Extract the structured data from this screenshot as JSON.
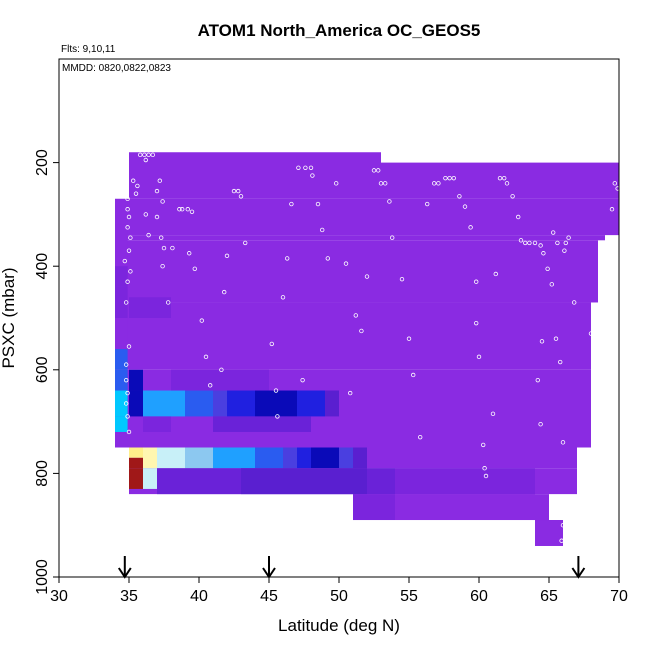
{
  "chart_data": {
    "type": "heatmap",
    "title": "ATOM1 North_America OC_GEOS5",
    "annotations": [
      "Flts: 9,10,11",
      "MMDD: 0820,0822,0823"
    ],
    "xlabel": "Latitude (deg N)",
    "ylabel": "PSXC (mbar)",
    "xlim": [
      30,
      70
    ],
    "ylim": [
      1000,
      0
    ],
    "x_ticks": [
      "30",
      "35",
      "40",
      "45",
      "50",
      "55",
      "60",
      "65",
      "70"
    ],
    "y_ticks": [
      "200",
      "400",
      "600",
      "800",
      "1000"
    ],
    "grid": false,
    "arrows_at_latitude": [
      34.7,
      45.0,
      67.1
    ],
    "colors": {
      "background": "#8a2be2",
      "violet": "#8a2be2",
      "violet_mid": "#7b25dd",
      "violet_dark": "#6a22d8",
      "indigo": "#5a1fd0",
      "blue_violet": "#4a3fe0",
      "blue": "#2020e0",
      "navy": "#0a0ab8",
      "royal": "#2a5cf0",
      "sky": "#1fa0ff",
      "cyan": "#00c8ff",
      "light_blue": "#8cc8f0",
      "pale_cyan": "#c8f0f8",
      "pale_yellow": "#fff7b0",
      "yellow": "#fff08a",
      "dark_red": "#a01818",
      "marker": "#ffffff",
      "arrow": "#000000"
    },
    "cells": [
      [
        34.0,
        34.9,
        270,
        320,
        "violet"
      ],
      [
        34.0,
        34.9,
        320,
        400,
        "violet"
      ],
      [
        34.0,
        34.9,
        400,
        440,
        "violet_mid"
      ],
      [
        34.0,
        34.9,
        440,
        500,
        "violet_mid"
      ],
      [
        34.0,
        34.9,
        500,
        560,
        "violet"
      ],
      [
        34.0,
        34.9,
        560,
        600,
        "royal"
      ],
      [
        34.0,
        34.9,
        600,
        640,
        "royal"
      ],
      [
        34.0,
        34.9,
        640,
        690,
        "cyan"
      ],
      [
        34.0,
        34.9,
        690,
        720,
        "cyan"
      ],
      [
        35.0,
        36.0,
        600,
        640,
        "navy"
      ],
      [
        35.0,
        36.0,
        640,
        690,
        "navy"
      ],
      [
        35.0,
        36.0,
        750,
        770,
        "yellow"
      ],
      [
        35.0,
        36.0,
        770,
        790,
        "dark_red"
      ],
      [
        35.0,
        36.0,
        790,
        830,
        "dark_red"
      ],
      [
        36.0,
        37.0,
        640,
        690,
        "sky"
      ],
      [
        36.0,
        37.0,
        750,
        790,
        "pale_yellow"
      ],
      [
        36.0,
        37.0,
        790,
        830,
        "pale_cyan"
      ],
      [
        37.0,
        38.0,
        640,
        690,
        "sky"
      ],
      [
        37.0,
        38.0,
        750,
        790,
        "pale_cyan"
      ],
      [
        38.0,
        39.0,
        640,
        690,
        "sky"
      ],
      [
        38.0,
        39.0,
        750,
        790,
        "pale_cyan"
      ],
      [
        39.0,
        40.0,
        640,
        690,
        "royal"
      ],
      [
        39.0,
        40.0,
        750,
        790,
        "light_blue"
      ],
      [
        40.0,
        41.0,
        640,
        690,
        "royal"
      ],
      [
        40.0,
        41.0,
        750,
        790,
        "light_blue"
      ],
      [
        41.0,
        42.0,
        640,
        690,
        "blue_violet"
      ],
      [
        41.0,
        42.0,
        750,
        790,
        "sky"
      ],
      [
        42.0,
        43.0,
        640,
        690,
        "blue"
      ],
      [
        42.0,
        43.0,
        750,
        790,
        "sky"
      ],
      [
        43.0,
        44.0,
        640,
        690,
        "blue"
      ],
      [
        43.0,
        44.0,
        750,
        790,
        "sky"
      ],
      [
        44.0,
        45.0,
        640,
        690,
        "navy"
      ],
      [
        44.0,
        45.0,
        750,
        790,
        "royal"
      ],
      [
        45.0,
        46.0,
        640,
        690,
        "navy"
      ],
      [
        45.0,
        46.0,
        750,
        790,
        "royal"
      ],
      [
        46.0,
        47.0,
        640,
        690,
        "navy"
      ],
      [
        46.0,
        47.0,
        750,
        790,
        "blue_violet"
      ],
      [
        47.0,
        48.0,
        640,
        690,
        "blue"
      ],
      [
        47.0,
        48.0,
        750,
        790,
        "blue"
      ],
      [
        48.0,
        49.0,
        640,
        690,
        "blue"
      ],
      [
        48.0,
        49.0,
        750,
        790,
        "navy"
      ],
      [
        49.0,
        50.0,
        640,
        690,
        "indigo"
      ],
      [
        49.0,
        50.0,
        750,
        790,
        "navy"
      ],
      [
        50.0,
        51.0,
        750,
        790,
        "blue_violet"
      ],
      [
        51.0,
        52.0,
        750,
        790,
        "indigo"
      ],
      [
        35.0,
        38.0,
        460,
        500,
        "violet_mid"
      ],
      [
        38.0,
        45.0,
        600,
        640,
        "violet_mid"
      ],
      [
        36.0,
        38.0,
        690,
        720,
        "violet_mid"
      ],
      [
        41.0,
        48.0,
        690,
        720,
        "violet_dark"
      ],
      [
        37.0,
        54.0,
        790,
        840,
        "violet_dark"
      ],
      [
        43.0,
        52.0,
        790,
        840,
        "indigo"
      ],
      [
        54.0,
        58.0,
        790,
        840,
        "violet_mid"
      ],
      [
        58.0,
        64.0,
        790,
        840,
        "violet_mid"
      ],
      [
        51.0,
        54.0,
        840,
        890,
        "violet_mid"
      ],
      [
        54.0,
        64.0,
        840,
        890,
        "violet"
      ],
      [
        64.0,
        66.0,
        890,
        940,
        "violet"
      ]
    ],
    "markers": [
      [
        35.8,
        185
      ],
      [
        36.1,
        185
      ],
      [
        36.4,
        185
      ],
      [
        36.7,
        185
      ],
      [
        36.2,
        195
      ],
      [
        35.3,
        235
      ],
      [
        35.6,
        245
      ],
      [
        35.5,
        260
      ],
      [
        34.9,
        270
      ],
      [
        34.9,
        290
      ],
      [
        35.0,
        305
      ],
      [
        34.9,
        325
      ],
      [
        35.1,
        345
      ],
      [
        35.0,
        370
      ],
      [
        34.7,
        390
      ],
      [
        35.1,
        410
      ],
      [
        34.9,
        430
      ],
      [
        34.8,
        470
      ],
      [
        35.0,
        555
      ],
      [
        34.8,
        590
      ],
      [
        34.8,
        620
      ],
      [
        34.9,
        645
      ],
      [
        34.8,
        665
      ],
      [
        34.9,
        690
      ],
      [
        35.0,
        720
      ],
      [
        36.2,
        300
      ],
      [
        36.4,
        340
      ],
      [
        37.2,
        235
      ],
      [
        37.0,
        255
      ],
      [
        37.4,
        275
      ],
      [
        37.0,
        305
      ],
      [
        37.3,
        345
      ],
      [
        37.5,
        365
      ],
      [
        37.4,
        400
      ],
      [
        37.8,
        470
      ],
      [
        38.6,
        290
      ],
      [
        38.8,
        290
      ],
      [
        39.2,
        290
      ],
      [
        39.5,
        295
      ],
      [
        38.1,
        365
      ],
      [
        39.3,
        375
      ],
      [
        39.7,
        405
      ],
      [
        40.2,
        505
      ],
      [
        40.5,
        575
      ],
      [
        40.8,
        630
      ],
      [
        41.6,
        600
      ],
      [
        41.8,
        450
      ],
      [
        42.0,
        380
      ],
      [
        42.5,
        255
      ],
      [
        42.8,
        255
      ],
      [
        43.0,
        265
      ],
      [
        43.3,
        355
      ],
      [
        45.2,
        550
      ],
      [
        45.5,
        640
      ],
      [
        45.6,
        690
      ],
      [
        46.0,
        460
      ],
      [
        46.3,
        385
      ],
      [
        46.6,
        280
      ],
      [
        47.1,
        210
      ],
      [
        47.6,
        210
      ],
      [
        48.0,
        210
      ],
      [
        47.4,
        620
      ],
      [
        48.1,
        225
      ],
      [
        48.5,
        280
      ],
      [
        48.8,
        330
      ],
      [
        49.2,
        385
      ],
      [
        49.8,
        240
      ],
      [
        50.5,
        395
      ],
      [
        50.8,
        645
      ],
      [
        51.2,
        495
      ],
      [
        51.6,
        525
      ],
      [
        52.0,
        420
      ],
      [
        52.5,
        215
      ],
      [
        52.8,
        215
      ],
      [
        53.0,
        240
      ],
      [
        53.3,
        240
      ],
      [
        53.6,
        275
      ],
      [
        53.8,
        345
      ],
      [
        54.5,
        425
      ],
      [
        55.0,
        540
      ],
      [
        55.3,
        610
      ],
      [
        55.8,
        730
      ],
      [
        56.3,
        280
      ],
      [
        56.8,
        240
      ],
      [
        57.1,
        240
      ],
      [
        57.6,
        230
      ],
      [
        57.9,
        230
      ],
      [
        58.2,
        230
      ],
      [
        58.6,
        265
      ],
      [
        59.0,
        285
      ],
      [
        59.4,
        325
      ],
      [
        59.8,
        430
      ],
      [
        59.8,
        510
      ],
      [
        60.0,
        575
      ],
      [
        60.3,
        745
      ],
      [
        60.4,
        790
      ],
      [
        60.5,
        805
      ],
      [
        61.0,
        685
      ],
      [
        61.2,
        415
      ],
      [
        61.5,
        230
      ],
      [
        61.8,
        230
      ],
      [
        62.0,
        240
      ],
      [
        62.4,
        265
      ],
      [
        62.8,
        305
      ],
      [
        63.0,
        350
      ],
      [
        63.3,
        355
      ],
      [
        63.6,
        355
      ],
      [
        64.0,
        355
      ],
      [
        64.4,
        360
      ],
      [
        64.6,
        375
      ],
      [
        64.9,
        405
      ],
      [
        65.2,
        435
      ],
      [
        65.5,
        540
      ],
      [
        65.8,
        585
      ],
      [
        66.0,
        740
      ],
      [
        65.3,
        335
      ],
      [
        65.6,
        355
      ],
      [
        66.1,
        370
      ],
      [
        66.2,
        355
      ],
      [
        66.4,
        345
      ],
      [
        66.8,
        470
      ],
      [
        68.0,
        530
      ],
      [
        68.3,
        565
      ],
      [
        68.7,
        670
      ],
      [
        68.9,
        595
      ],
      [
        69.5,
        290
      ],
      [
        69.7,
        240
      ],
      [
        69.9,
        250
      ],
      [
        64.5,
        545
      ],
      [
        64.2,
        620
      ],
      [
        64.4,
        705
      ],
      [
        66.0,
        900
      ],
      [
        65.9,
        930
      ],
      [
        65.8,
        950
      ],
      [
        66.1,
        960
      ]
    ]
  }
}
